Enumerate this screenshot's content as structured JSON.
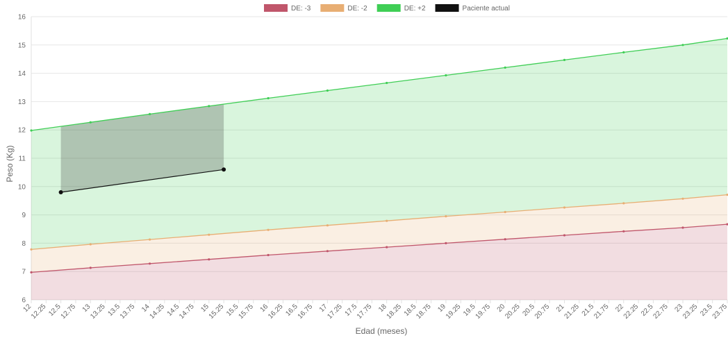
{
  "chart_data": {
    "type": "area",
    "xlabel": "Edad (meses)",
    "ylabel": "Peso (Kg)",
    "x": [
      12,
      12.25,
      12.5,
      12.75,
      13,
      13.25,
      13.5,
      13.75,
      14,
      14.25,
      14.5,
      14.75,
      15,
      15.25,
      15.5,
      15.75,
      16,
      16.25,
      16.5,
      16.75,
      17,
      17.25,
      17.5,
      17.75,
      18,
      18.25,
      18.5,
      18.75,
      19,
      19.25,
      19.5,
      19.75,
      20,
      20.25,
      20.5,
      20.75,
      21,
      21.25,
      21.5,
      21.75,
      22,
      22.25,
      22.5,
      22.75,
      23,
      23.25,
      23.5,
      23.75
    ],
    "x_tick_labels": [
      "12",
      "12.25",
      "12.5",
      "12.75",
      "13",
      "13.25",
      "13.5",
      "13.75",
      "14",
      "14.25",
      "14.5",
      "14.75",
      "15",
      "15.25",
      "15.5",
      "15.75",
      "16",
      "16.25",
      "16.5",
      "16.75",
      "17",
      "17.25",
      "17.5",
      "17.75",
      "18",
      "18.25",
      "18.5",
      "18.75",
      "19",
      "19.25",
      "19.5",
      "19.75",
      "20",
      "20.25",
      "20.5",
      "20.75",
      "21",
      "21.25",
      "21.5",
      "21.75",
      "22",
      "22.25",
      "22.5",
      "22.75",
      "23",
      "23.25",
      "23.5",
      "23.75"
    ],
    "ylim": [
      6,
      16
    ],
    "y_ticks": [
      6,
      7,
      8,
      9,
      10,
      11,
      12,
      13,
      14,
      15,
      16
    ],
    "grid": true,
    "legend_position": "top",
    "series": [
      {
        "name": "DE: -3",
        "color": "#c0566b",
        "fill": "rgba(192,86,107,0.2)",
        "points": [
          [
            12,
            6.97
          ],
          [
            13,
            7.13
          ],
          [
            14,
            7.28
          ],
          [
            15,
            7.43
          ],
          [
            16,
            7.58
          ],
          [
            17,
            7.72
          ],
          [
            18,
            7.86
          ],
          [
            19,
            8.0
          ],
          [
            20,
            8.14
          ],
          [
            21,
            8.28
          ],
          [
            22,
            8.42
          ],
          [
            23,
            8.55
          ],
          [
            23.75,
            8.67
          ]
        ]
      },
      {
        "name": "DE: -2",
        "color": "#e8ae73",
        "fill": "rgba(232,174,115,0.2)",
        "points": [
          [
            12,
            7.78
          ],
          [
            13,
            7.96
          ],
          [
            14,
            8.13
          ],
          [
            15,
            8.3
          ],
          [
            16,
            8.47
          ],
          [
            17,
            8.63
          ],
          [
            18,
            8.79
          ],
          [
            19,
            8.95
          ],
          [
            20,
            9.1
          ],
          [
            21,
            9.26
          ],
          [
            22,
            9.41
          ],
          [
            23,
            9.57
          ],
          [
            23.75,
            9.71
          ]
        ]
      },
      {
        "name": "DE: +2",
        "color": "#3fce55",
        "fill": "rgba(63,206,85,0.2)",
        "points": [
          [
            12,
            11.98
          ],
          [
            13,
            12.27
          ],
          [
            14,
            12.56
          ],
          [
            15,
            12.84
          ],
          [
            16,
            13.12
          ],
          [
            17,
            13.39
          ],
          [
            18,
            13.66
          ],
          [
            19,
            13.93
          ],
          [
            20,
            14.2
          ],
          [
            21,
            14.47
          ],
          [
            22,
            14.74
          ],
          [
            23,
            15.0
          ],
          [
            23.75,
            15.23
          ]
        ]
      },
      {
        "name": "Paciente actual",
        "color": "#111111",
        "fill": "rgba(50,50,50,0.25)",
        "points": [
          [
            12.5,
            9.8
          ],
          [
            15.25,
            10.6
          ]
        ]
      }
    ]
  }
}
